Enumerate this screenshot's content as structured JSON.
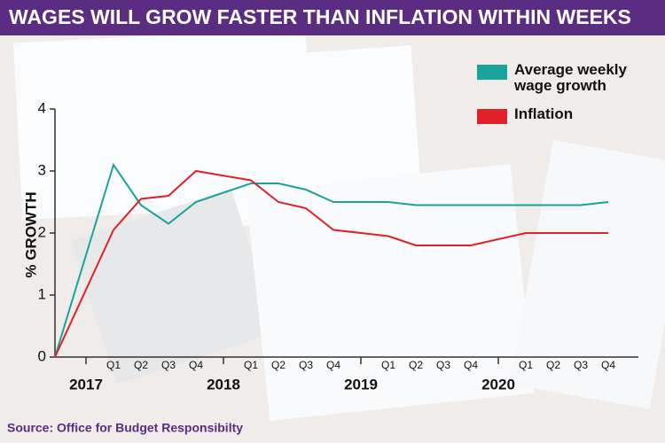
{
  "chart_data": {
    "type": "line",
    "title": "WAGES WILL GROW FASTER THAN INFLATION WITHIN WEEKS",
    "source": "Source: Office for Budget Responsibilty",
    "y_label": "% GROWTH",
    "categories": [
      null,
      "Q1",
      "Q2",
      "Q3",
      "Q4",
      "Q1",
      "Q2",
      "Q3",
      "Q4",
      "Q1",
      "Q2",
      "Q3",
      "Q4",
      "Q1",
      "Q2",
      "Q3",
      "Q4"
    ],
    "years": [
      "2017",
      "2018",
      "2019",
      "2020"
    ],
    "series": [
      {
        "name": "Average weekly wage growth",
        "color": "#1aa39a",
        "values": [
          0,
          3.1,
          2.45,
          2.15,
          2.5,
          2.8,
          2.8,
          2.7,
          2.5,
          2.5,
          2.45,
          2.45,
          2.45,
          2.45,
          2.45,
          2.45,
          2.5
        ]
      },
      {
        "name": "Inflation",
        "color": "#e0202a",
        "values": [
          0,
          2.05,
          2.55,
          2.6,
          3.0,
          2.85,
          2.5,
          2.4,
          2.05,
          1.95,
          1.8,
          1.8,
          1.8,
          2.0,
          2.0,
          2.0,
          2.0
        ]
      }
    ],
    "ylim": [
      0,
      4
    ],
    "yticks": [
      0,
      1,
      2,
      3,
      4
    ],
    "legend": "top-right"
  }
}
